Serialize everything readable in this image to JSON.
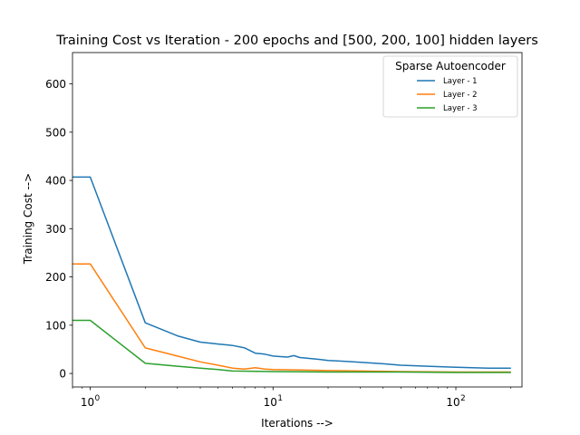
{
  "chart_data": {
    "type": "line",
    "title": "Training Cost vs Iteration - 200 epochs and [500, 200, 100] hidden layers",
    "xlabel": "Iterations -->",
    "ylabel": "Training Cost -->",
    "xscale": "log",
    "xlim": [
      0.8,
      230
    ],
    "ylim": [
      -28,
      665
    ],
    "yticks": [
      0,
      100,
      200,
      300,
      400,
      500,
      600
    ],
    "xticks": [
      {
        "value": 1,
        "base": "10",
        "exp": "0"
      },
      {
        "value": 10,
        "base": "10",
        "exp": "1"
      },
      {
        "value": 100,
        "base": "10",
        "exp": "2"
      }
    ],
    "grid": false,
    "legend": {
      "title": "Sparse Autoencoder",
      "placement": "top-right"
    },
    "series": [
      {
        "name": "Layer - 1",
        "color": "#1f77b4",
        "points": [
          [
            0.8,
            407
          ],
          [
            1,
            407
          ],
          [
            2,
            105
          ],
          [
            3,
            78
          ],
          [
            4,
            65
          ],
          [
            5,
            61
          ],
          [
            6,
            58
          ],
          [
            7,
            53
          ],
          [
            8,
            42
          ],
          [
            9,
            40
          ],
          [
            10,
            36
          ],
          [
            11,
            35
          ],
          [
            12,
            34
          ],
          [
            13,
            37
          ],
          [
            14,
            33
          ],
          [
            16,
            31
          ],
          [
            18,
            29
          ],
          [
            20,
            27
          ],
          [
            25,
            25
          ],
          [
            30,
            23
          ],
          [
            40,
            20
          ],
          [
            50,
            17
          ],
          [
            70,
            15
          ],
          [
            100,
            13
          ],
          [
            150,
            11
          ],
          [
            200,
            11
          ]
        ]
      },
      {
        "name": "Layer - 2",
        "color": "#ff7f0e",
        "points": [
          [
            0.8,
            227
          ],
          [
            1,
            227
          ],
          [
            2,
            53
          ],
          [
            3,
            36
          ],
          [
            4,
            24
          ],
          [
            5,
            17
          ],
          [
            6,
            11
          ],
          [
            7,
            9
          ],
          [
            8,
            12
          ],
          [
            9,
            9
          ],
          [
            10,
            8
          ],
          [
            15,
            7
          ],
          [
            20,
            6
          ],
          [
            30,
            5
          ],
          [
            50,
            4
          ],
          [
            100,
            3
          ],
          [
            200,
            3
          ]
        ]
      },
      {
        "name": "Layer - 3",
        "color": "#2ca02c",
        "points": [
          [
            0.8,
            110
          ],
          [
            1,
            110
          ],
          [
            2,
            21
          ],
          [
            3,
            15
          ],
          [
            4,
            11
          ],
          [
            5,
            8
          ],
          [
            6,
            5
          ],
          [
            10,
            4
          ],
          [
            20,
            3
          ],
          [
            50,
            3
          ],
          [
            100,
            2
          ],
          [
            200,
            2
          ]
        ]
      }
    ]
  }
}
